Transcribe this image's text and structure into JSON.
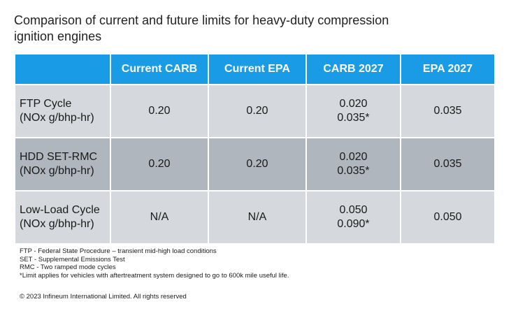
{
  "title": {
    "line1": "Comparison of current and future limits for heavy-duty compression",
    "line2": "ignition engines"
  },
  "table": {
    "headers": [
      "",
      "Current CARB",
      "Current EPA",
      "CARB 2027",
      "EPA 2027"
    ],
    "rows": [
      {
        "label": [
          "FTP Cycle",
          "(NOx g/bhp-hr)"
        ],
        "current_carb": "0.20",
        "current_epa": "0.20",
        "carb_2027": [
          "0.020",
          "0.035*"
        ],
        "epa_2027": "0.035"
      },
      {
        "label": [
          "HDD SET-RMC",
          "(NOx g/bhp-hr)"
        ],
        "current_carb": "0.20",
        "current_epa": "0.20",
        "carb_2027": [
          "0.020",
          "0.035*"
        ],
        "epa_2027": "0.035"
      },
      {
        "label": [
          "Low-Load Cycle",
          "(NOx g/bhp-hr)"
        ],
        "current_carb": "N/A",
        "current_epa": "N/A",
        "carb_2027": [
          "0.050",
          "0.090*"
        ],
        "epa_2027": "0.050"
      }
    ]
  },
  "notes": [
    "FTP - Federal State Procedure – transient mid-high load conditions",
    "SET - Supplemental Emissions Test",
    "RMC - Two ramped mode cycles",
    "*Limit applies for vehicles with aftertreatment system designed to go to 600k mile useful life."
  ],
  "copyright": "© 2023 Infineum International Limited. All rights reserved",
  "colors": {
    "header_bg": "#1a9be6",
    "row_light": "#d5d9dd",
    "row_dark": "#afb6be"
  }
}
